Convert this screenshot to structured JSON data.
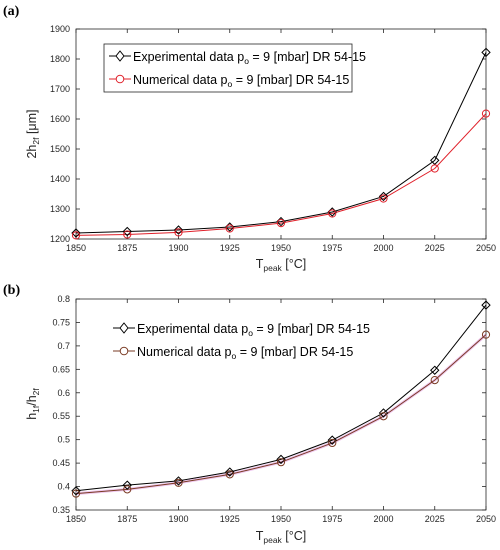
{
  "chart_data": [
    {
      "type": "line",
      "panel_label": "(a)",
      "x": [
        1850,
        1875,
        1900,
        1925,
        1950,
        1975,
        2000,
        2025,
        2050
      ],
      "xlim": [
        1850,
        2050
      ],
      "ylim": [
        1200,
        1900
      ],
      "x_ticks": [
        "1850",
        "1875",
        "1900",
        "1925",
        "1950",
        "1975",
        "2000",
        "2025",
        "2050"
      ],
      "y_ticks": [
        "1200",
        "1300",
        "1400",
        "1500",
        "1600",
        "1700",
        "1800",
        "1900"
      ],
      "y_tick_values": [
        1200,
        1300,
        1400,
        1500,
        1600,
        1700,
        1800,
        1900
      ],
      "xlabel": {
        "base": "T",
        "sub": "peak",
        "rest": " [°C]"
      },
      "ylabel": {
        "base": "2h",
        "sub": "2f",
        "rest": " [μm]"
      },
      "grid": false,
      "legend_position": "top-left",
      "series": [
        {
          "name": "Experimental data p_o = 9 [mbar] DR 54-15",
          "legend": {
            "a": "Experimental data p",
            "sub": "o",
            "b": " = 9 [mbar] DR 54-15"
          },
          "values": [
            1220,
            1225,
            1230,
            1240,
            1258,
            1290,
            1342,
            1462,
            1822
          ],
          "color": "#000000",
          "marker": "diamond"
        },
        {
          "name": "Numerical data p_o = 9 [mbar] DR 54-15",
          "legend": {
            "a": "Numerical data p",
            "sub": "o",
            "b": " = 9 [mbar] DR 54-15"
          },
          "values": [
            1212,
            1215,
            1222,
            1235,
            1253,
            1285,
            1335,
            1435,
            1618
          ],
          "color": "#e0202a",
          "marker": "circle"
        }
      ]
    },
    {
      "type": "line",
      "panel_label": "(b)",
      "x": [
        1850,
        1875,
        1900,
        1925,
        1950,
        1975,
        2000,
        2025,
        2050
      ],
      "xlim": [
        1850,
        2050
      ],
      "ylim": [
        0.35,
        0.8
      ],
      "x_ticks": [
        "1850",
        "1875",
        "1900",
        "1925",
        "1950",
        "1975",
        "2000",
        "2025",
        "2050"
      ],
      "y_ticks": [
        "0.35",
        "0.4",
        "0.45",
        "0.5",
        "0.55",
        "0.6",
        "0.65",
        "0.7",
        "0.75",
        "0.8"
      ],
      "y_tick_values": [
        0.35,
        0.4,
        0.45,
        0.5,
        0.55,
        0.6,
        0.65,
        0.7,
        0.75,
        0.8
      ],
      "xlabel": {
        "base": "T",
        "sub": "peak",
        "rest": " [°C]"
      },
      "ylabel": {
        "base": "h",
        "sub": "1f",
        "mid": "/h",
        "sub2": "2f"
      },
      "grid": false,
      "legend_position": "top-left",
      "series": [
        {
          "name": "Experimental data p_o = 9 [mbar] DR 54-15",
          "legend": {
            "a": "Experimental data p",
            "sub": "o",
            "b": " = 9 [mbar] DR 54-15"
          },
          "values": [
            0.391,
            0.403,
            0.412,
            0.431,
            0.458,
            0.499,
            0.557,
            0.648,
            0.787
          ],
          "color": "#000000",
          "marker": "diamond"
        },
        {
          "name": "Numerical data p_o = 9 [mbar] DR 54-15",
          "legend": {
            "a": "Numerical data p",
            "sub": "o",
            "b": " = 9 [mbar] DR 54-15"
          },
          "values": [
            0.385,
            0.394,
            0.408,
            0.426,
            0.452,
            0.493,
            0.55,
            0.627,
            0.724
          ],
          "color": "#7a3b24",
          "marker": "circle",
          "line_color": "#e8b0e8"
        }
      ]
    }
  ]
}
